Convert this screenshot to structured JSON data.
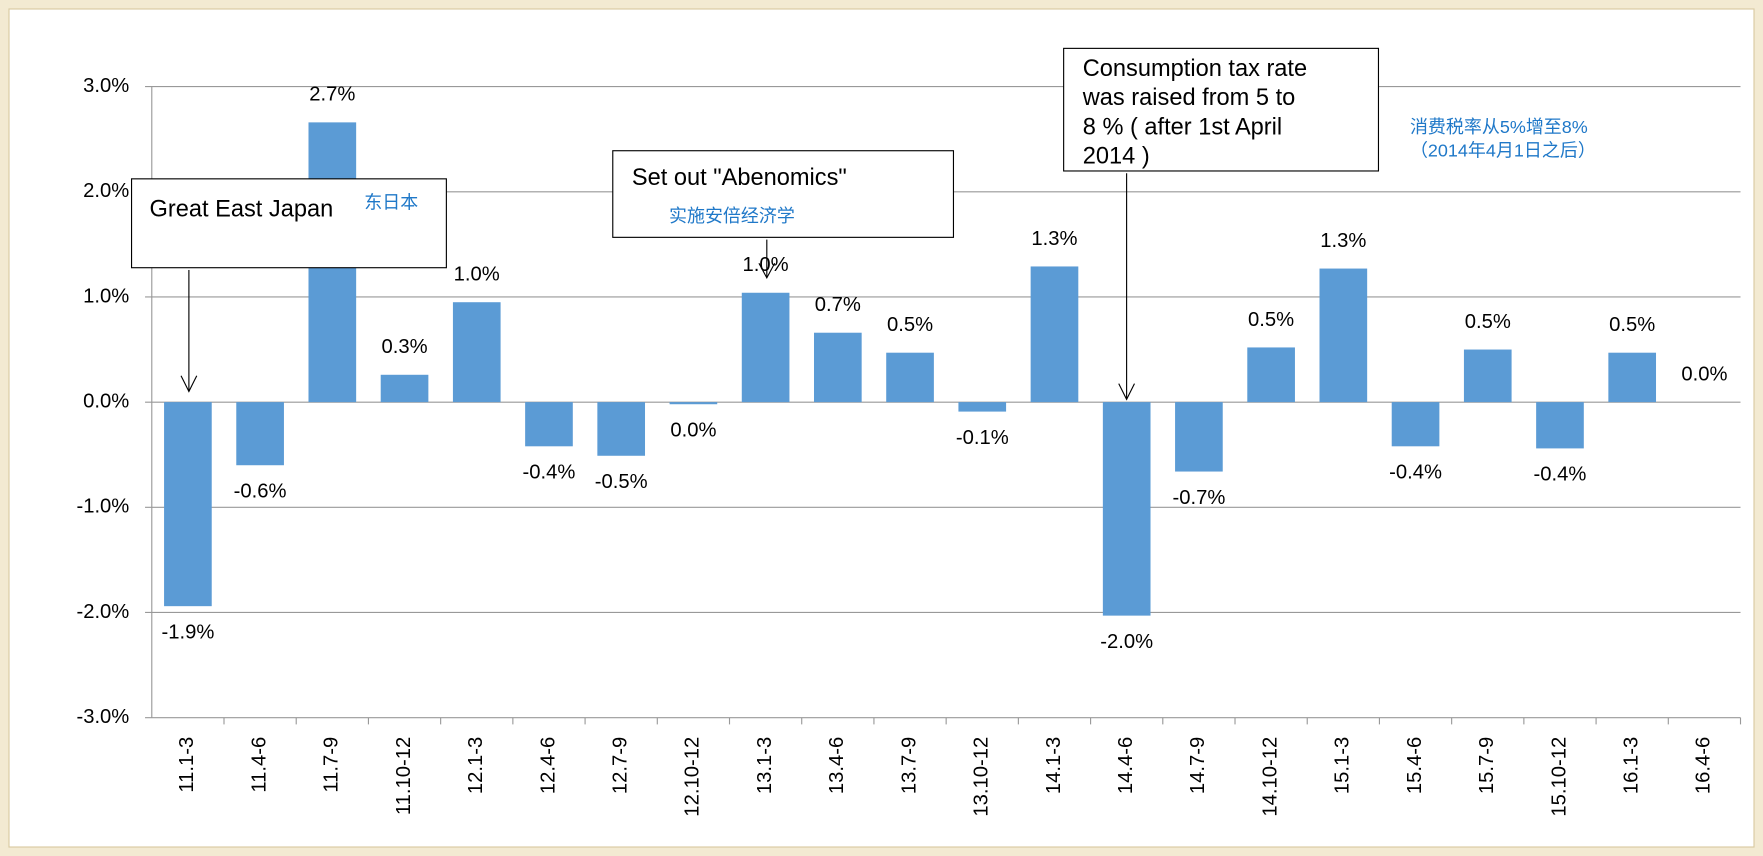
{
  "chart_data": {
    "type": "bar",
    "categories": [
      "11.1-3",
      "11.4-6",
      "11.7-9",
      "11.10-12",
      "12.1-3",
      "12.4-6",
      "12.7-9",
      "12.10-12",
      "13.1-3",
      "13.4-6",
      "13.7-9",
      "13.10-12",
      "14.1-3",
      "14.4-6",
      "14.7-9",
      "14.10-12",
      "15.1-3",
      "15.4-6",
      "15.7-9",
      "15.10-12",
      "16.1-3",
      "16.4-6"
    ],
    "values": [
      -1.94,
      -0.6,
      2.66,
      0.26,
      0.95,
      -0.42,
      -0.51,
      -0.02,
      1.04,
      0.66,
      0.47,
      -0.09,
      1.29,
      -2.03,
      -0.66,
      0.52,
      1.27,
      -0.42,
      0.5,
      -0.44,
      0.47,
      0
    ],
    "value_labels": [
      "-1.9%",
      "-0.6%",
      "2.7%",
      "0.3%",
      "1.0%",
      "-0.4%",
      "-0.5%",
      "0.0%",
      "1.0%",
      "0.7%",
      "0.5%",
      "-0.1%",
      "1.3%",
      "-2.0%",
      "-0.7%",
      "0.5%",
      "1.3%",
      "-0.4%",
      "0.5%",
      "-0.4%",
      "0.5%",
      "0.0%"
    ],
    "color": "#5b9bd5",
    "ylim": [
      -3,
      3
    ],
    "yticks": [
      {
        "value": -3,
        "label": "-3.0%"
      },
      {
        "value": -2,
        "label": "-2.0%"
      },
      {
        "value": -1,
        "label": "-1.0%"
      },
      {
        "value": 0,
        "label": "0.0%"
      },
      {
        "value": 1,
        "label": "1.0%"
      },
      {
        "value": 2,
        "label": "2.0%"
      },
      {
        "value": 3,
        "label": "3.0%"
      }
    ],
    "grid": true,
    "annotations": [
      {
        "lines": [
          "Great East Japan"
        ],
        "note": "东日本"
      },
      {
        "lines": [
          "Set out \"Abenomics\""
        ],
        "note": "实施安倍经济学"
      },
      {
        "lines": [
          "Consumption tax rate",
          "was raised from 5 to",
          "8 % ( after 1st April",
          "2014 )"
        ],
        "note_lines": [
          "消费税率从5%增至8%",
          "（2014年4月1日之后）"
        ]
      }
    ]
  }
}
